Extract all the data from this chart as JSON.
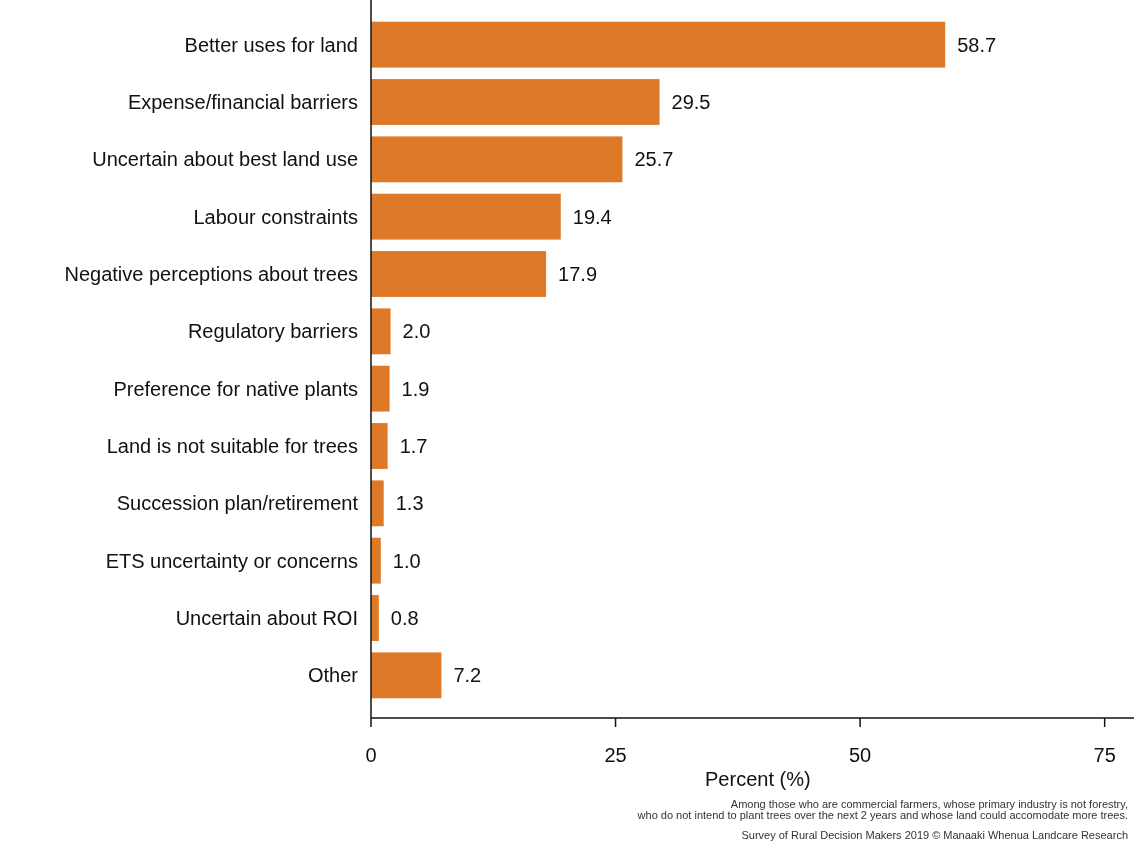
{
  "chart_data": {
    "type": "bar",
    "orientation": "horizontal",
    "categories": [
      "Better uses for land",
      "Expense/financial barriers",
      "Uncertain about best land use",
      "Labour constraints",
      "Negative perceptions about trees",
      "Regulatory barriers",
      "Preference for native plants",
      "Land is not suitable for trees",
      "Succession plan/retirement",
      "ETS uncertainty or concerns",
      "Uncertain about ROI",
      "Other"
    ],
    "values": [
      58.7,
      29.5,
      25.7,
      19.4,
      17.9,
      2.0,
      1.9,
      1.7,
      1.3,
      1.0,
      0.8,
      7.2
    ],
    "value_labels": [
      "58.7",
      "29.5",
      "25.7",
      "19.4",
      "17.9",
      "2.0",
      "1.9",
      "1.7",
      "1.3",
      "1.0",
      "0.8",
      "7.2"
    ],
    "color": "#de7a27",
    "xlim": [
      0,
      78
    ],
    "xticks": [
      0,
      25,
      50,
      75
    ],
    "xlabel": "Percent (%)",
    "annotations": [
      "Among those who are commercial farmers, whose primary industry is not forestry,\nwho do not intend to plant trees over the next 2 years and whose land could accomodate more trees.",
      "Survey of Rural Decision Makers 2019 © Manaaki Whenua Landcare Research"
    ]
  }
}
